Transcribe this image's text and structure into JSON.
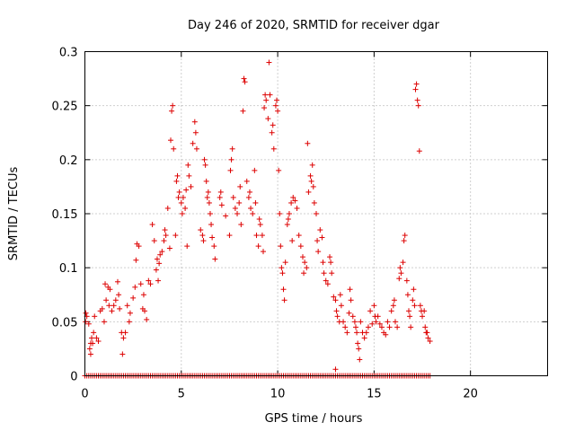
{
  "chart_data": {
    "type": "scatter",
    "title": "Day 246 of 2020, SRMTID for receiver dgar",
    "xlabel": "GPS time / hours",
    "ylabel": "SRMTID / TECUs",
    "xlim": [
      0,
      24
    ],
    "ylim": [
      0,
      0.3
    ],
    "xticks": [
      0,
      5,
      10,
      15,
      20
    ],
    "xtick_labels": [
      "0",
      "5",
      "10",
      "15",
      "20"
    ],
    "yticks": [
      0,
      0.05,
      0.1,
      0.15,
      0.2,
      0.25,
      0.3
    ],
    "ytick_labels": [
      "0",
      "0.05",
      "0.1",
      "0.15",
      "0.2",
      "0.25",
      "0.3"
    ],
    "grid": true,
    "marker": "+",
    "marker_color": "#dd0000",
    "series": [
      {
        "name": "SRMTID",
        "points": [
          [
            0.03,
            0.05
          ],
          [
            0.05,
            0.058
          ],
          [
            0.1,
            0.055
          ],
          [
            0.2,
            0.048
          ],
          [
            0.25,
            0.025
          ],
          [
            0.3,
            0.03
          ],
          [
            0.3,
            0.02
          ],
          [
            0.35,
            0.035
          ],
          [
            0.4,
            0.03
          ],
          [
            0.45,
            0.04
          ],
          [
            0.5,
            0.055
          ],
          [
            0.6,
            0.035
          ],
          [
            0.7,
            0.032
          ],
          [
            0.8,
            0.06
          ],
          [
            0.9,
            0.062
          ],
          [
            1.0,
            0.05
          ],
          [
            1.05,
            0.085
          ],
          [
            1.1,
            0.07
          ],
          [
            1.2,
            0.082
          ],
          [
            1.25,
            0.065
          ],
          [
            1.3,
            0.08
          ],
          [
            1.4,
            0.06
          ],
          [
            1.5,
            0.065
          ],
          [
            1.6,
            0.07
          ],
          [
            1.7,
            0.087
          ],
          [
            1.75,
            0.075
          ],
          [
            1.8,
            0.062
          ],
          [
            1.9,
            0.04
          ],
          [
            1.95,
            0.02
          ],
          [
            2.0,
            0.035
          ],
          [
            2.1,
            0.04
          ],
          [
            2.2,
            0.065
          ],
          [
            2.3,
            0.05
          ],
          [
            2.35,
            0.058
          ],
          [
            2.5,
            0.072
          ],
          [
            2.6,
            0.082
          ],
          [
            2.65,
            0.107
          ],
          [
            2.7,
            0.122
          ],
          [
            2.8,
            0.12
          ],
          [
            2.9,
            0.085
          ],
          [
            3.0,
            0.062
          ],
          [
            3.05,
            0.075
          ],
          [
            3.1,
            0.06
          ],
          [
            3.2,
            0.052
          ],
          [
            3.3,
            0.088
          ],
          [
            3.4,
            0.085
          ],
          [
            3.5,
            0.14
          ],
          [
            3.6,
            0.125
          ],
          [
            3.7,
            0.098
          ],
          [
            3.75,
            0.108
          ],
          [
            3.8,
            0.088
          ],
          [
            3.85,
            0.104
          ],
          [
            3.9,
            0.112
          ],
          [
            4.0,
            0.115
          ],
          [
            4.1,
            0.125
          ],
          [
            4.15,
            0.135
          ],
          [
            4.2,
            0.13
          ],
          [
            4.3,
            0.155
          ],
          [
            4.4,
            0.118
          ],
          [
            4.45,
            0.218
          ],
          [
            4.5,
            0.245
          ],
          [
            4.55,
            0.25
          ],
          [
            4.6,
            0.21
          ],
          [
            4.7,
            0.13
          ],
          [
            4.75,
            0.18
          ],
          [
            4.8,
            0.185
          ],
          [
            4.85,
            0.165
          ],
          [
            4.9,
            0.17
          ],
          [
            5.0,
            0.16
          ],
          [
            5.05,
            0.15
          ],
          [
            5.1,
            0.165
          ],
          [
            5.2,
            0.155
          ],
          [
            5.25,
            0.172
          ],
          [
            5.3,
            0.12
          ],
          [
            5.35,
            0.195
          ],
          [
            5.4,
            0.185
          ],
          [
            5.5,
            0.175
          ],
          [
            5.6,
            0.215
          ],
          [
            5.7,
            0.235
          ],
          [
            5.75,
            0.225
          ],
          [
            5.8,
            0.21
          ],
          [
            6.0,
            0.135
          ],
          [
            6.1,
            0.13
          ],
          [
            6.15,
            0.125
          ],
          [
            6.2,
            0.2
          ],
          [
            6.25,
            0.195
          ],
          [
            6.3,
            0.18
          ],
          [
            6.35,
            0.165
          ],
          [
            6.4,
            0.17
          ],
          [
            6.45,
            0.16
          ],
          [
            6.5,
            0.15
          ],
          [
            6.55,
            0.14
          ],
          [
            6.6,
            0.128
          ],
          [
            6.7,
            0.12
          ],
          [
            6.75,
            0.108
          ],
          [
            7.0,
            0.165
          ],
          [
            7.05,
            0.17
          ],
          [
            7.1,
            0.158
          ],
          [
            7.3,
            0.148
          ],
          [
            7.5,
            0.13
          ],
          [
            7.55,
            0.19
          ],
          [
            7.6,
            0.2
          ],
          [
            7.65,
            0.21
          ],
          [
            7.7,
            0.165
          ],
          [
            7.8,
            0.155
          ],
          [
            7.9,
            0.15
          ],
          [
            8.0,
            0.16
          ],
          [
            8.05,
            0.175
          ],
          [
            8.1,
            0.14
          ],
          [
            8.2,
            0.245
          ],
          [
            8.25,
            0.275
          ],
          [
            8.3,
            0.272
          ],
          [
            8.4,
            0.18
          ],
          [
            8.5,
            0.165
          ],
          [
            8.55,
            0.17
          ],
          [
            8.6,
            0.155
          ],
          [
            8.7,
            0.15
          ],
          [
            8.8,
            0.19
          ],
          [
            8.85,
            0.16
          ],
          [
            8.9,
            0.13
          ],
          [
            9.0,
            0.12
          ],
          [
            9.05,
            0.145
          ],
          [
            9.1,
            0.14
          ],
          [
            9.2,
            0.13
          ],
          [
            9.25,
            0.115
          ],
          [
            9.3,
            0.248
          ],
          [
            9.35,
            0.26
          ],
          [
            9.4,
            0.255
          ],
          [
            9.5,
            0.238
          ],
          [
            9.55,
            0.29
          ],
          [
            9.6,
            0.26
          ],
          [
            9.7,
            0.225
          ],
          [
            9.75,
            0.232
          ],
          [
            9.8,
            0.21
          ],
          [
            9.9,
            0.25
          ],
          [
            9.95,
            0.255
          ],
          [
            10.0,
            0.245
          ],
          [
            10.05,
            0.19
          ],
          [
            10.1,
            0.15
          ],
          [
            10.15,
            0.12
          ],
          [
            10.2,
            0.1
          ],
          [
            10.25,
            0.095
          ],
          [
            10.3,
            0.08
          ],
          [
            10.35,
            0.07
          ],
          [
            10.4,
            0.105
          ],
          [
            10.5,
            0.14
          ],
          [
            10.55,
            0.145
          ],
          [
            10.6,
            0.15
          ],
          [
            10.7,
            0.16
          ],
          [
            10.75,
            0.125
          ],
          [
            10.8,
            0.165
          ],
          [
            10.9,
            0.162
          ],
          [
            11.0,
            0.155
          ],
          [
            11.1,
            0.13
          ],
          [
            11.2,
            0.12
          ],
          [
            11.3,
            0.11
          ],
          [
            11.35,
            0.095
          ],
          [
            11.4,
            0.105
          ],
          [
            11.5,
            0.1
          ],
          [
            11.55,
            0.215
          ],
          [
            11.6,
            0.17
          ],
          [
            11.7,
            0.185
          ],
          [
            11.75,
            0.18
          ],
          [
            11.8,
            0.195
          ],
          [
            11.85,
            0.175
          ],
          [
            11.9,
            0.16
          ],
          [
            12.0,
            0.15
          ],
          [
            12.05,
            0.125
          ],
          [
            12.1,
            0.115
          ],
          [
            12.2,
            0.135
          ],
          [
            12.3,
            0.128
          ],
          [
            12.35,
            0.105
          ],
          [
            12.4,
            0.095
          ],
          [
            12.5,
            0.088
          ],
          [
            12.6,
            0.085
          ],
          [
            12.7,
            0.11
          ],
          [
            12.75,
            0.105
          ],
          [
            12.8,
            0.095
          ],
          [
            12.9,
            0.073
          ],
          [
            13.0,
            0.07
          ],
          [
            13.05,
            0.06
          ],
          [
            13.1,
            0.055
          ],
          [
            13.2,
            0.05
          ],
          [
            13.25,
            0.075
          ],
          [
            13.3,
            0.065
          ],
          [
            13.4,
            0.05
          ],
          [
            13.5,
            0.045
          ],
          [
            13.6,
            0.04
          ],
          [
            13.7,
            0.058
          ],
          [
            13.75,
            0.08
          ],
          [
            13.8,
            0.07
          ],
          [
            13.9,
            0.055
          ],
          [
            14.0,
            0.05
          ],
          [
            14.05,
            0.045
          ],
          [
            14.1,
            0.04
          ],
          [
            14.15,
            0.03
          ],
          [
            14.2,
            0.025
          ],
          [
            14.25,
            0.015
          ],
          [
            14.3,
            0.05
          ],
          [
            14.4,
            0.04
          ],
          [
            14.5,
            0.035
          ],
          [
            14.6,
            0.04
          ],
          [
            14.7,
            0.045
          ],
          [
            14.8,
            0.06
          ],
          [
            14.9,
            0.048
          ],
          [
            15.0,
            0.065
          ],
          [
            15.05,
            0.055
          ],
          [
            15.1,
            0.05
          ],
          [
            15.2,
            0.055
          ],
          [
            15.3,
            0.048
          ],
          [
            15.4,
            0.045
          ],
          [
            15.5,
            0.04
          ],
          [
            15.6,
            0.038
          ],
          [
            15.7,
            0.05
          ],
          [
            15.8,
            0.045
          ],
          [
            15.9,
            0.06
          ],
          [
            16.0,
            0.065
          ],
          [
            16.05,
            0.07
          ],
          [
            16.1,
            0.05
          ],
          [
            16.2,
            0.045
          ],
          [
            16.3,
            0.09
          ],
          [
            16.35,
            0.1
          ],
          [
            16.4,
            0.095
          ],
          [
            16.5,
            0.105
          ],
          [
            16.55,
            0.125
          ],
          [
            16.6,
            0.13
          ],
          [
            16.7,
            0.088
          ],
          [
            16.75,
            0.075
          ],
          [
            16.8,
            0.06
          ],
          [
            16.85,
            0.055
          ],
          [
            16.9,
            0.045
          ],
          [
            17.0,
            0.07
          ],
          [
            17.05,
            0.08
          ],
          [
            17.1,
            0.065
          ],
          [
            17.15,
            0.265
          ],
          [
            17.2,
            0.27
          ],
          [
            17.25,
            0.255
          ],
          [
            17.3,
            0.25
          ],
          [
            17.35,
            0.208
          ],
          [
            17.4,
            0.065
          ],
          [
            17.45,
            0.06
          ],
          [
            17.5,
            0.055
          ],
          [
            17.6,
            0.06
          ],
          [
            17.65,
            0.045
          ],
          [
            17.7,
            0.04
          ],
          [
            17.75,
            0.04
          ],
          [
            17.8,
            0.035
          ],
          [
            17.9,
            0.032
          ],
          [
            13.0,
            0.006
          ]
        ],
        "zero_range_hours": [
          0.0,
          17.9
        ],
        "zero_step_hours": 0.1
      }
    ]
  }
}
